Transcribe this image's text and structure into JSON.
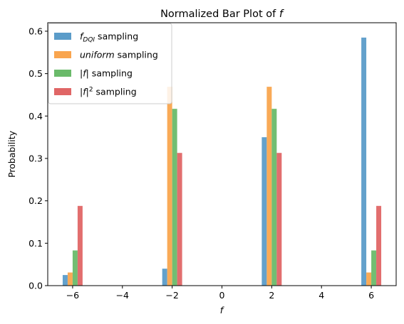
{
  "chart_data": {
    "type": "bar",
    "title": "Normalized Bar Plot of ",
    "title_math": "f",
    "xlabel": "f",
    "ylabel": "Probability",
    "x_categories": [
      -6,
      -2,
      2,
      6
    ],
    "xlim": [
      -7,
      7
    ],
    "ylim": [
      0,
      0.62
    ],
    "xticks": [
      "−6",
      "−4",
      "−2",
      "0",
      "2",
      "4",
      "6"
    ],
    "xtick_values": [
      -6,
      -4,
      -2,
      0,
      2,
      4,
      6
    ],
    "yticks": [
      "0.0",
      "0.1",
      "0.2",
      "0.3",
      "0.4",
      "0.5",
      "0.6"
    ],
    "ytick_values": [
      0,
      0.1,
      0.2,
      0.3,
      0.4,
      0.5,
      0.6
    ],
    "grid": false,
    "legend_position": "top-left",
    "series": [
      {
        "name": "f_DQI sampling",
        "legend_main": "f",
        "legend_sub": "DQI",
        "legend_rest": " sampling",
        "color": "#5b9cc9",
        "values": [
          0.025,
          0.04,
          0.35,
          0.585
        ]
      },
      {
        "name": "uniform sampling",
        "legend_main": "uniform",
        "legend_rest": " sampling",
        "color": "#f9a54e",
        "values": [
          0.031,
          0.469,
          0.469,
          0.031
        ]
      },
      {
        "name": "|f| sampling",
        "legend_main": "|f|",
        "legend_rest": " sampling",
        "color": "#6aba6a",
        "values": [
          0.083,
          0.417,
          0.417,
          0.083
        ]
      },
      {
        "name": "|f|^2 sampling",
        "legend_main": "|f|",
        "legend_sup": "2",
        "legend_rest": " sampling",
        "color": "#e06666",
        "values": [
          0.188,
          0.313,
          0.313,
          0.188
        ]
      }
    ]
  }
}
